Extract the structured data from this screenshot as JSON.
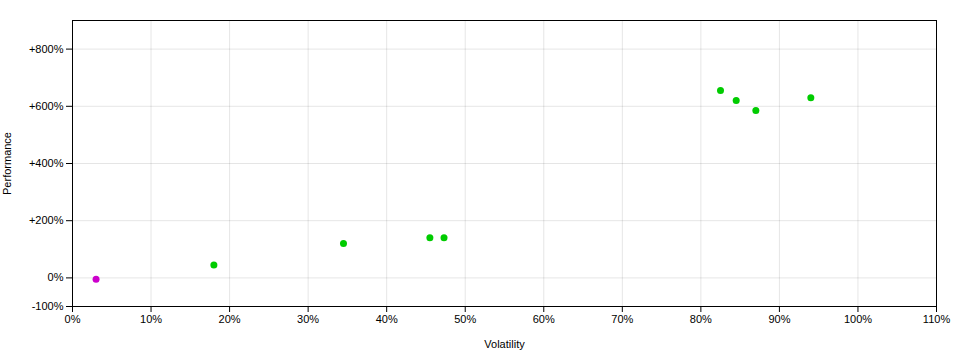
{
  "chart_data": {
    "type": "scatter",
    "xlabel": "Volatility",
    "ylabel": "Performance",
    "x": [
      0.03,
      0.18,
      0.345,
      0.455,
      0.473,
      0.825,
      0.845,
      0.87,
      0.94
    ],
    "values": [
      -0.05,
      0.45,
      1.2,
      1.4,
      1.4,
      6.55,
      6.2,
      5.85,
      6.3
    ],
    "colors": [
      "#cc00cc",
      "#00cc00",
      "#00cc00",
      "#00cc00",
      "#00cc00",
      "#00cc00",
      "#00cc00",
      "#00cc00",
      "#00cc00"
    ],
    "xlim": [
      0,
      1.1
    ],
    "ylim": [
      -1.0,
      9.0
    ],
    "xticks": [
      {
        "value": 0.0,
        "label": "0%"
      },
      {
        "value": 0.1,
        "label": "10%"
      },
      {
        "value": 0.2,
        "label": "20%"
      },
      {
        "value": 0.3,
        "label": "30%"
      },
      {
        "value": 0.4,
        "label": "40%"
      },
      {
        "value": 0.5,
        "label": "50%"
      },
      {
        "value": 0.6,
        "label": "60%"
      },
      {
        "value": 0.7,
        "label": "70%"
      },
      {
        "value": 0.8,
        "label": "80%"
      },
      {
        "value": 0.9,
        "label": "90%"
      },
      {
        "value": 1.0,
        "label": "100%"
      },
      {
        "value": 1.1,
        "label": "110%"
      }
    ],
    "yticks": [
      {
        "value": -1.0,
        "label": "-100%"
      },
      {
        "value": 0.0,
        "label": "0%"
      },
      {
        "value": 2.0,
        "label": "+200%"
      },
      {
        "value": 4.0,
        "label": "+400%"
      },
      {
        "value": 6.0,
        "label": "+600%"
      },
      {
        "value": 8.0,
        "label": "+800%"
      }
    ],
    "grid": true
  }
}
